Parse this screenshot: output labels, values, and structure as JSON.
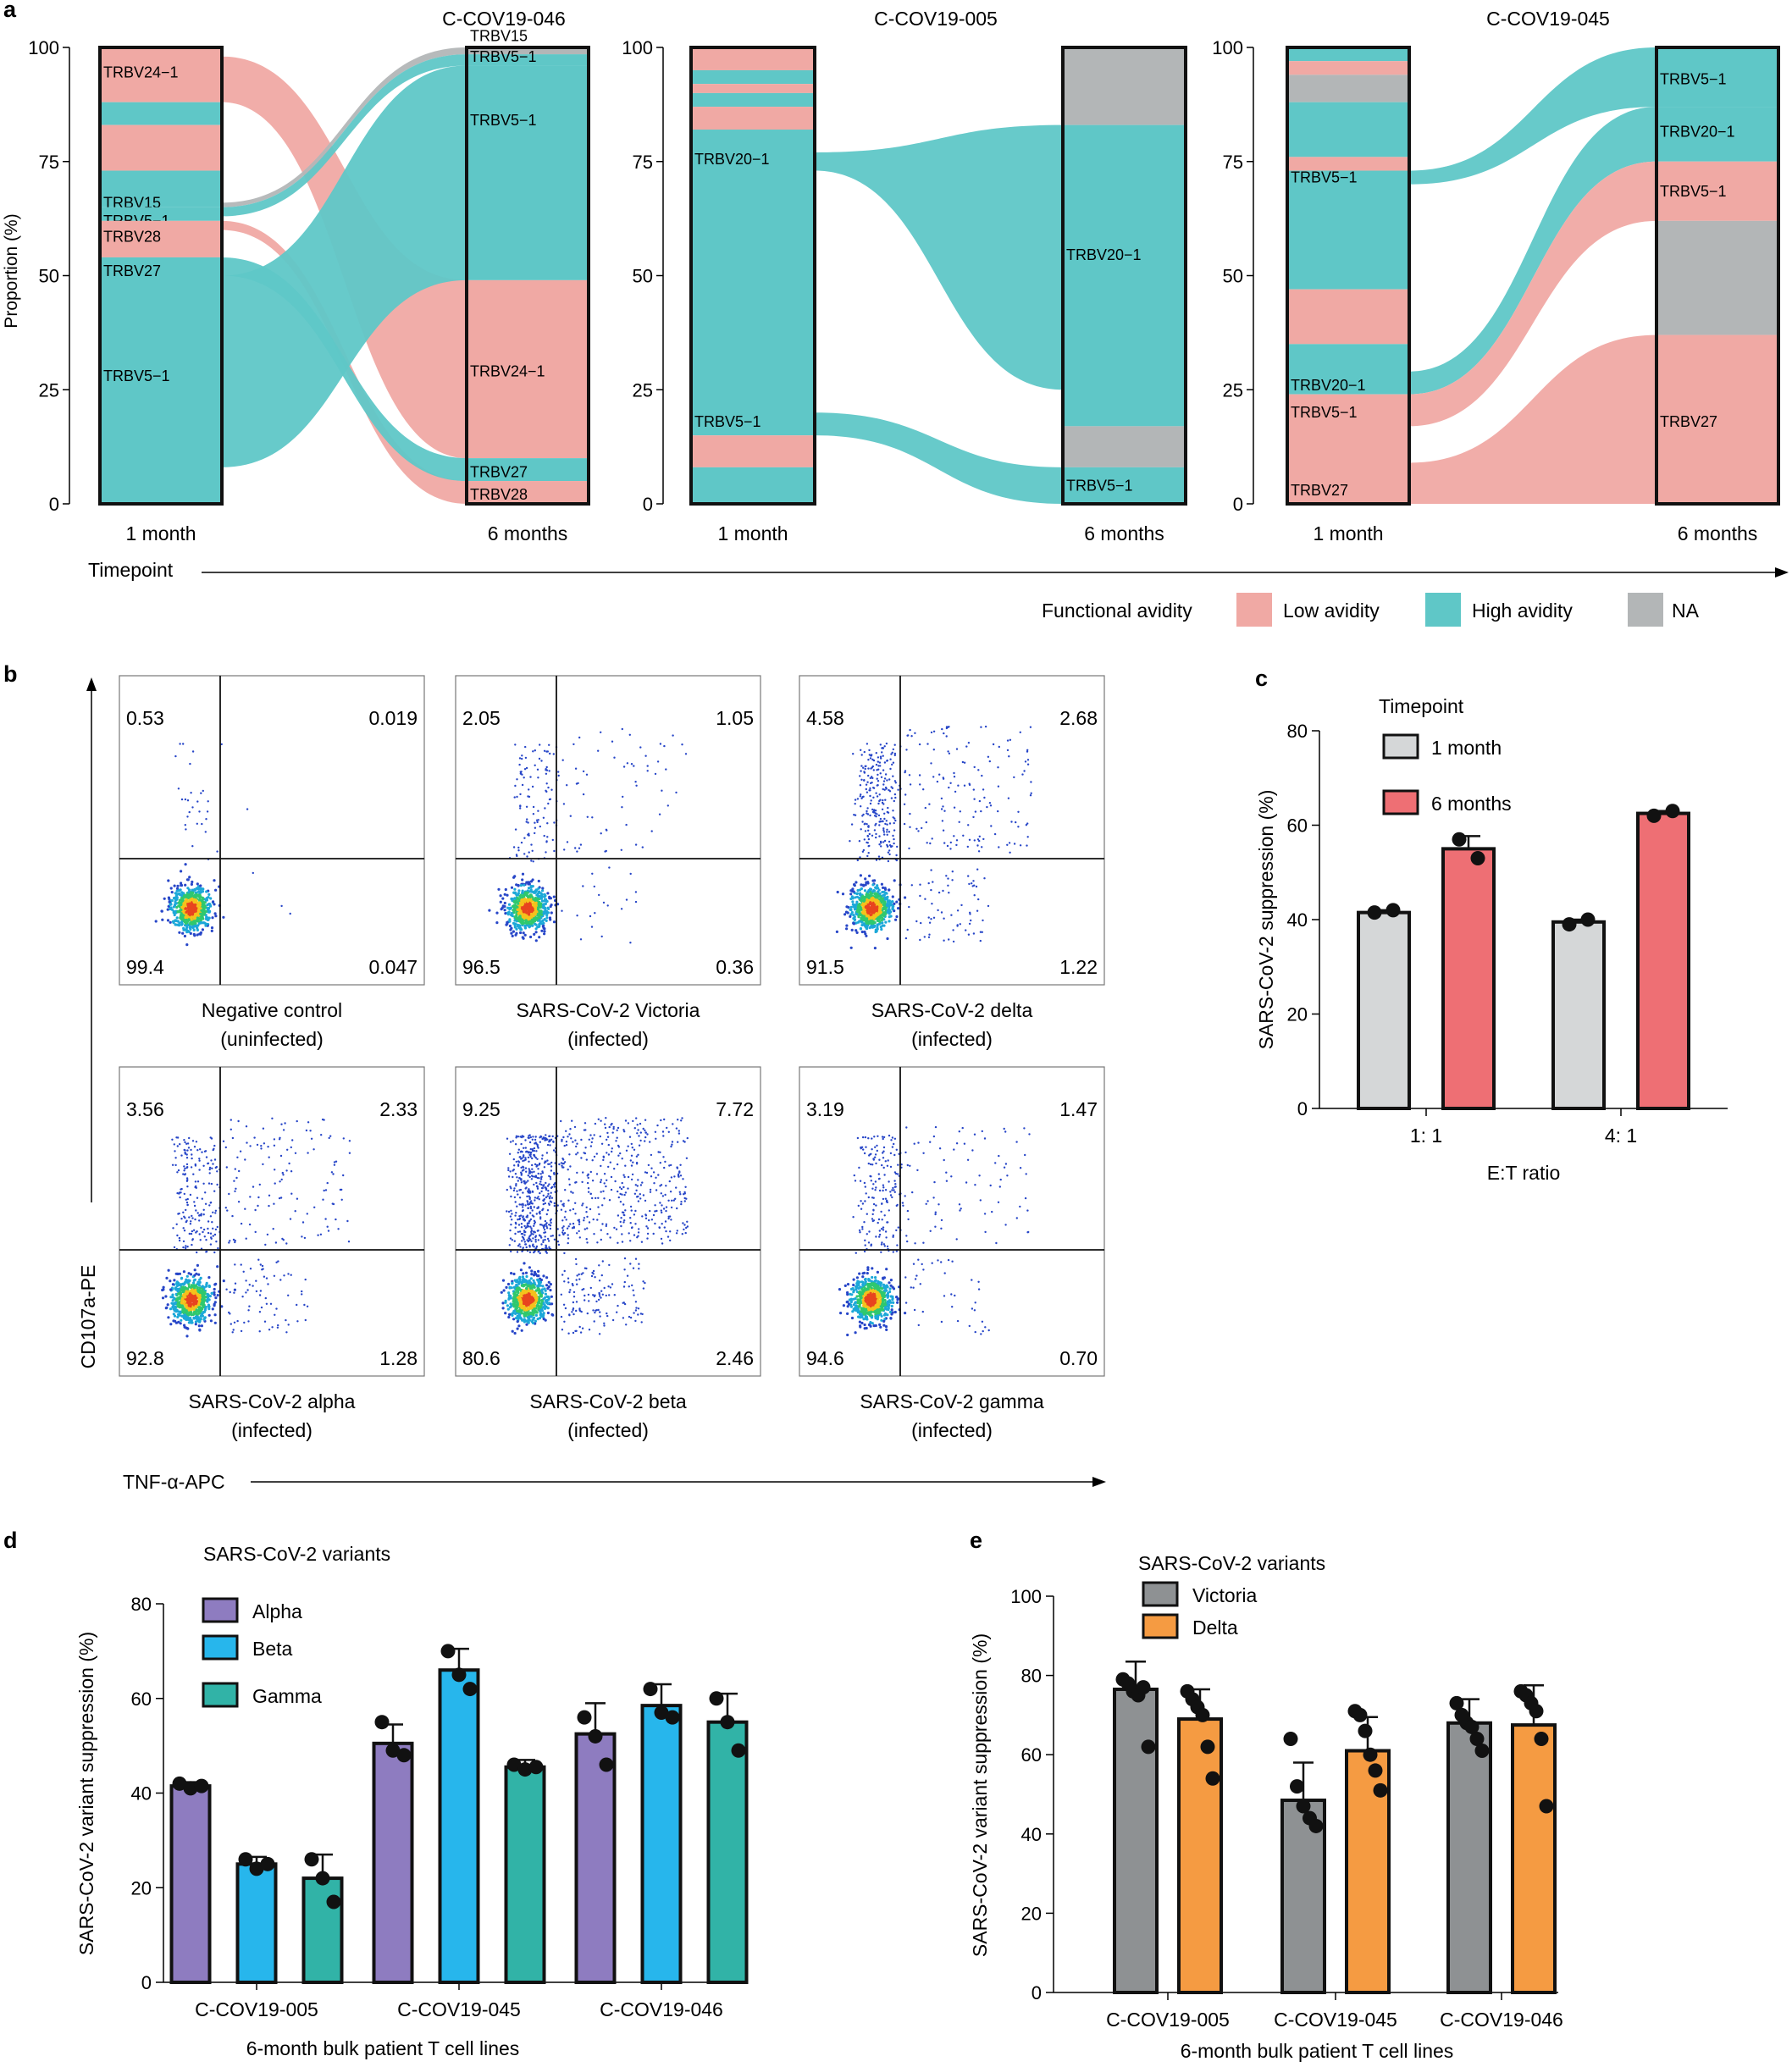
{
  "colors": {
    "low": "#F0A9A4",
    "high": "#5FC7C7",
    "na": "#B3B6B7",
    "lowBar": "#EE6F74",
    "grayBar": "#D5D7D8",
    "alpha": "#8E7CC0",
    "beta": "#27B6EC",
    "gamma": "#31B3A7",
    "victoria": "#8E9193",
    "delta": "#F59B42"
  },
  "panel_letters": {
    "a": "a",
    "b": "b",
    "c": "c",
    "d": "d",
    "e": "e"
  },
  "chart_data": [
    {
      "panel": "a",
      "type": "alluvial",
      "ylabel": "Proportion (%)",
      "xlabel": "Timepoint",
      "yticks": [
        "0",
        "25",
        "50",
        "75",
        "100"
      ],
      "legend": {
        "title": "Functional avidity",
        "items": [
          {
            "label": "Low avidity",
            "key": "low"
          },
          {
            "label": "High avidity",
            "key": "high"
          },
          {
            "label": "NA",
            "key": "na"
          }
        ]
      },
      "timepoints": [
        "1 month",
        "6 months"
      ],
      "subplots": [
        {
          "title": "C-COV19-046",
          "left": [
            {
              "lo": 88,
              "hi": 100,
              "cat": "low",
              "label": "TRBV24−1",
              "lp": 94.5
            },
            {
              "lo": 83,
              "hi": 88,
              "cat": "high"
            },
            {
              "lo": 73,
              "hi": 83,
              "cat": "low"
            },
            {
              "lo": 65,
              "hi": 73,
              "cat": "high",
              "label": "TRBV15",
              "lp": 66
            },
            {
              "lo": 62,
              "hi": 65,
              "cat": "high",
              "label": "TRBV5−1",
              "lp": 62
            },
            {
              "lo": 54,
              "hi": 62,
              "cat": "low",
              "label": "TRBV28",
              "lp": 58.5
            },
            {
              "lo": 0,
              "hi": 54,
              "cat": "high",
              "label": "TRBV27",
              "lp": 51,
              "label2": "TRBV5−1",
              "lp2": 28
            }
          ],
          "right": [
            {
              "lo": 98.5,
              "hi": 100,
              "cat": "na",
              "label": "TRBV15",
              "lp": 102.5
            },
            {
              "lo": 96,
              "hi": 98.5,
              "cat": "high",
              "label": "TRBV5−1",
              "lp": 98
            },
            {
              "lo": 49,
              "hi": 96,
              "cat": "high",
              "label": "TRBV5−1",
              "lp": 84
            },
            {
              "lo": 10,
              "hi": 49,
              "cat": "low",
              "label": "TRBV24−1",
              "lp": 29
            },
            {
              "lo": 5,
              "hi": 10,
              "cat": "high",
              "label": "TRBV27",
              "lp": 7
            },
            {
              "lo": 0,
              "hi": 5,
              "cat": "low",
              "label": "TRBV28",
              "lp": 2
            }
          ],
          "flows": [
            {
              "l": [
                88,
                98
              ],
              "r": [
                10,
                49
              ],
              "cat": "low"
            },
            {
              "l": [
                65,
                66
              ],
              "r": [
                98.5,
                100
              ],
              "cat": "na"
            },
            {
              "l": [
                63,
                65
              ],
              "r": [
                96,
                98.5
              ],
              "cat": "high"
            },
            {
              "l": [
                60,
                62
              ],
              "r": [
                0,
                5
              ],
              "cat": "low"
            },
            {
              "l": [
                50,
                54
              ],
              "r": [
                5,
                10
              ],
              "cat": "high"
            },
            {
              "l": [
                8,
                50
              ],
              "r": [
                49,
                96
              ],
              "cat": "high"
            }
          ]
        },
        {
          "title": "C-COV19-005",
          "left": [
            {
              "lo": 95,
              "hi": 100,
              "cat": "low"
            },
            {
              "lo": 92,
              "hi": 95,
              "cat": "high"
            },
            {
              "lo": 90,
              "hi": 92,
              "cat": "low"
            },
            {
              "lo": 87,
              "hi": 90,
              "cat": "high"
            },
            {
              "lo": 82,
              "hi": 87,
              "cat": "low"
            },
            {
              "lo": 15,
              "hi": 82,
              "cat": "high",
              "label": "TRBV20−1",
              "lp": 75.5
            },
            {
              "lo": 8,
              "hi": 15,
              "cat": "low",
              "label": "TRBV5−1",
              "lp": 18
            },
            {
              "lo": 0,
              "hi": 8,
              "cat": "high"
            }
          ],
          "right": [
            {
              "lo": 83,
              "hi": 100,
              "cat": "na"
            },
            {
              "lo": 17,
              "hi": 83,
              "cat": "high",
              "label": "TRBV20−1",
              "lp": 54.5
            },
            {
              "lo": 8,
              "hi": 17,
              "cat": "na"
            },
            {
              "lo": 0,
              "hi": 8,
              "cat": "high",
              "label": "TRBV5−1",
              "lp": 4
            }
          ],
          "flows": [
            {
              "l": [
                73,
                77
              ],
              "r": [
                25,
                83
              ],
              "cat": "high"
            },
            {
              "l": [
                15,
                20
              ],
              "r": [
                0,
                8
              ],
              "cat": "high"
            }
          ]
        },
        {
          "title": "C-COV19-045",
          "left": [
            {
              "lo": 97,
              "hi": 100,
              "cat": "high"
            },
            {
              "lo": 94,
              "hi": 97,
              "cat": "low"
            },
            {
              "lo": 88,
              "hi": 94,
              "cat": "na"
            },
            {
              "lo": 76,
              "hi": 88,
              "cat": "high"
            },
            {
              "lo": 73,
              "hi": 76,
              "cat": "low"
            },
            {
              "lo": 47,
              "hi": 73,
              "cat": "high",
              "label": "TRBV5−1",
              "lp": 71.5
            },
            {
              "lo": 35,
              "hi": 47,
              "cat": "low"
            },
            {
              "lo": 24,
              "hi": 35,
              "cat": "high",
              "label": "TRBV20−1",
              "lp": 26
            },
            {
              "lo": 0,
              "hi": 24,
              "cat": "low",
              "label": "TRBV5−1",
              "lp": 20,
              "label2": "TRBV27",
              "lp2": 3
            }
          ],
          "right": [
            {
              "lo": 87,
              "hi": 100,
              "cat": "high",
              "label": "TRBV5−1",
              "lp": 93
            },
            {
              "lo": 75,
              "hi": 87,
              "cat": "high",
              "label": "TRBV20−1",
              "lp": 81.5
            },
            {
              "lo": 62,
              "hi": 75,
              "cat": "low",
              "label": "TRBV5−1",
              "lp": 68.5
            },
            {
              "lo": 37,
              "hi": 62,
              "cat": "na"
            },
            {
              "lo": 0,
              "hi": 37,
              "cat": "low",
              "label": "TRBV27",
              "lp": 18
            }
          ],
          "flows": [
            {
              "l": [
                70,
                73
              ],
              "r": [
                87,
                100
              ],
              "cat": "high"
            },
            {
              "l": [
                24,
                29
              ],
              "r": [
                75,
                87
              ],
              "cat": "high"
            },
            {
              "l": [
                17,
                24
              ],
              "r": [
                62,
                75
              ],
              "cat": "low"
            },
            {
              "l": [
                0,
                9
              ],
              "r": [
                0,
                37
              ],
              "cat": "low"
            }
          ]
        }
      ]
    },
    {
      "panel": "b",
      "type": "scatter",
      "xlabel": "TNF-α-APC",
      "ylabel": "CD107a-PE",
      "plots": [
        {
          "title1": "Negative control",
          "title2": "(uninfected)",
          "q": [
            "0.53",
            "0.019",
            "99.4",
            "0.047"
          ],
          "ul": 0.53,
          "ur": 0.019,
          "lr": 0.047
        },
        {
          "title1": "SARS-CoV-2 Victoria",
          "title2": "(infected)",
          "q": [
            "2.05",
            "1.05",
            "96.5",
            "0.36"
          ],
          "ul": 2.05,
          "ur": 1.05,
          "lr": 0.36
        },
        {
          "title1": "SARS-CoV-2 delta",
          "title2": "(infected)",
          "q": [
            "4.58",
            "2.68",
            "91.5",
            "1.22"
          ],
          "ul": 4.58,
          "ur": 2.68,
          "lr": 1.22
        },
        {
          "title1": "SARS-CoV-2 alpha",
          "title2": "(infected)",
          "q": [
            "3.56",
            "2.33",
            "92.8",
            "1.28"
          ],
          "ul": 3.56,
          "ur": 2.33,
          "lr": 1.28
        },
        {
          "title1": "SARS-CoV-2 beta",
          "title2": "(infected)",
          "q": [
            "9.25",
            "7.72",
            "80.6",
            "2.46"
          ],
          "ul": 9.25,
          "ur": 7.72,
          "lr": 2.46
        },
        {
          "title1": "SARS-CoV-2 gamma",
          "title2": "(infected)",
          "q": [
            "3.19",
            "1.47",
            "94.6",
            "0.70"
          ],
          "ul": 3.19,
          "ur": 1.47,
          "lr": 0.7
        }
      ]
    },
    {
      "panel": "c",
      "type": "bar",
      "ylabel": "SARS-CoV-2 suppression (%)",
      "xlabel": "E:T ratio",
      "ylim": [
        0,
        80
      ],
      "yticks": [
        "0",
        "20",
        "40",
        "60",
        "80"
      ],
      "categories": [
        "1: 1",
        "4: 1"
      ],
      "legend_title": "Timepoint",
      "series": [
        {
          "name": "1 month",
          "color": "grayBar",
          "values": [
            41.5,
            39.5
          ],
          "err": [
            0.5,
            0.5
          ],
          "points": [
            [
              41.5,
              42
            ],
            [
              39,
              40
            ]
          ]
        },
        {
          "name": "6 months",
          "color": "lowBar",
          "values": [
            55,
            62.5
          ],
          "err": [
            2.7,
            0.5
          ],
          "points": [
            [
              57,
              53
            ],
            [
              62,
              63
            ]
          ]
        }
      ]
    },
    {
      "panel": "d",
      "type": "bar",
      "ylabel": "SARS-CoV-2 variant suppression (%)",
      "xlabel": "6-month bulk patient T cell lines",
      "ylim": [
        0,
        80
      ],
      "yticks": [
        "0",
        "20",
        "40",
        "60",
        "80"
      ],
      "categories": [
        "C-COV19-005",
        "C-COV19-045",
        "C-COV19-046"
      ],
      "legend_title": "SARS-CoV-2 variants",
      "series": [
        {
          "name": "Alpha",
          "color": "alpha",
          "values": [
            41.5,
            50.5,
            52.5
          ],
          "err": [
            0.8,
            4,
            6.5
          ],
          "points": [
            [
              42,
              41,
              41.5
            ],
            [
              55,
              49,
              48
            ],
            [
              56,
              52,
              46
            ]
          ]
        },
        {
          "name": "Beta",
          "color": "beta",
          "values": [
            25,
            66,
            58.5
          ],
          "err": [
            1.5,
            4.5,
            4.5
          ],
          "points": [
            [
              26,
              24,
              25
            ],
            [
              70,
              65,
              62
            ],
            [
              62,
              57,
              56
            ]
          ]
        },
        {
          "name": "Gamma",
          "color": "gamma",
          "values": [
            22,
            45.5,
            55
          ],
          "err": [
            5,
            1.5,
            6
          ],
          "points": [
            [
              26,
              22,
              17
            ],
            [
              46,
              45,
              45.5
            ],
            [
              60,
              55,
              49
            ]
          ]
        }
      ]
    },
    {
      "panel": "e",
      "type": "bar",
      "ylabel": "SARS-CoV-2 variant suppression (%)",
      "xlabel": "6-month bulk patient T cell lines",
      "ylim": [
        0,
        100
      ],
      "yticks": [
        "0",
        "20",
        "40",
        "60",
        "80",
        "100"
      ],
      "categories": [
        "C-COV19-005",
        "C-COV19-045",
        "C-COV19-046"
      ],
      "legend_title": "SARS-CoV-2 variants",
      "series": [
        {
          "name": "Victoria",
          "color": "victoria",
          "values": [
            76.5,
            48.5,
            68
          ],
          "err": [
            7,
            9.5,
            6
          ],
          "points": [
            [
              79,
              78,
              76,
              75,
              77,
              62
            ],
            [
              64,
              52,
              47,
              44,
              42
            ],
            [
              73,
              70,
              68,
              67,
              64,
              61
            ]
          ]
        },
        {
          "name": "Delta",
          "color": "delta",
          "values": [
            69,
            61,
            67.5
          ],
          "err": [
            7.5,
            8.5,
            10
          ],
          "points": [
            [
              76,
              74,
              72,
              70,
              62,
              54
            ],
            [
              71,
              70,
              66,
              60,
              56,
              51
            ],
            [
              76,
              75,
              73,
              71,
              64,
              47
            ]
          ]
        }
      ]
    }
  ]
}
